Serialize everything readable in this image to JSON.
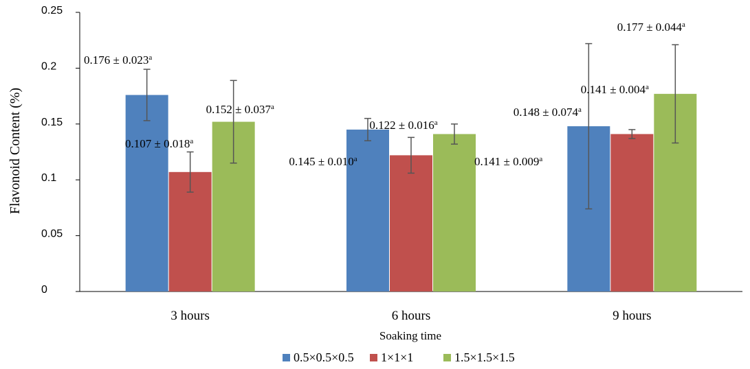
{
  "chart_data": {
    "type": "bar",
    "ylabel": "Flavonoid Content (%)",
    "xlabel": "Soaking time",
    "ylim": [
      0,
      0.25
    ],
    "y_ticks": [
      "0",
      "0.05",
      "0.1",
      "0.15",
      "0.2",
      "0.25"
    ],
    "y_tick_values": [
      0,
      0.05,
      0.1,
      0.15,
      0.2,
      0.25
    ],
    "grid": false,
    "legend_position": "bottom",
    "categories": [
      "3 hours",
      "6 hours",
      "9 hours"
    ],
    "series": [
      {
        "name": "0.5×0.5×0.5",
        "color": "#4F81BD",
        "values": [
          0.176,
          0.145,
          0.148
        ],
        "errors": [
          0.023,
          0.01,
          0.074
        ],
        "labels": [
          "0.176 ± 0.023",
          "0.145 ± 0.010",
          "0.148 ± 0.074"
        ],
        "superscripts": [
          "a",
          "a",
          "a"
        ]
      },
      {
        "name": "1×1×1",
        "color": "#C0504D",
        "values": [
          0.107,
          0.122,
          0.141
        ],
        "errors": [
          0.018,
          0.016,
          0.004
        ],
        "labels": [
          "0.107 ± 0.018",
          "0.122 ± 0.016",
          "0.141 ± 0.004"
        ],
        "superscripts": [
          "a",
          "a",
          "a"
        ]
      },
      {
        "name": "1.5×1.5×1.5",
        "color": "#9BBB59",
        "values": [
          0.152,
          0.141,
          0.177
        ],
        "errors": [
          0.037,
          0.009,
          0.044
        ],
        "labels": [
          "0.152 ± 0.037",
          "0.141 ± 0.009",
          "0.177 ± 0.044"
        ],
        "superscripts": [
          "a",
          "a",
          "a"
        ]
      }
    ]
  }
}
